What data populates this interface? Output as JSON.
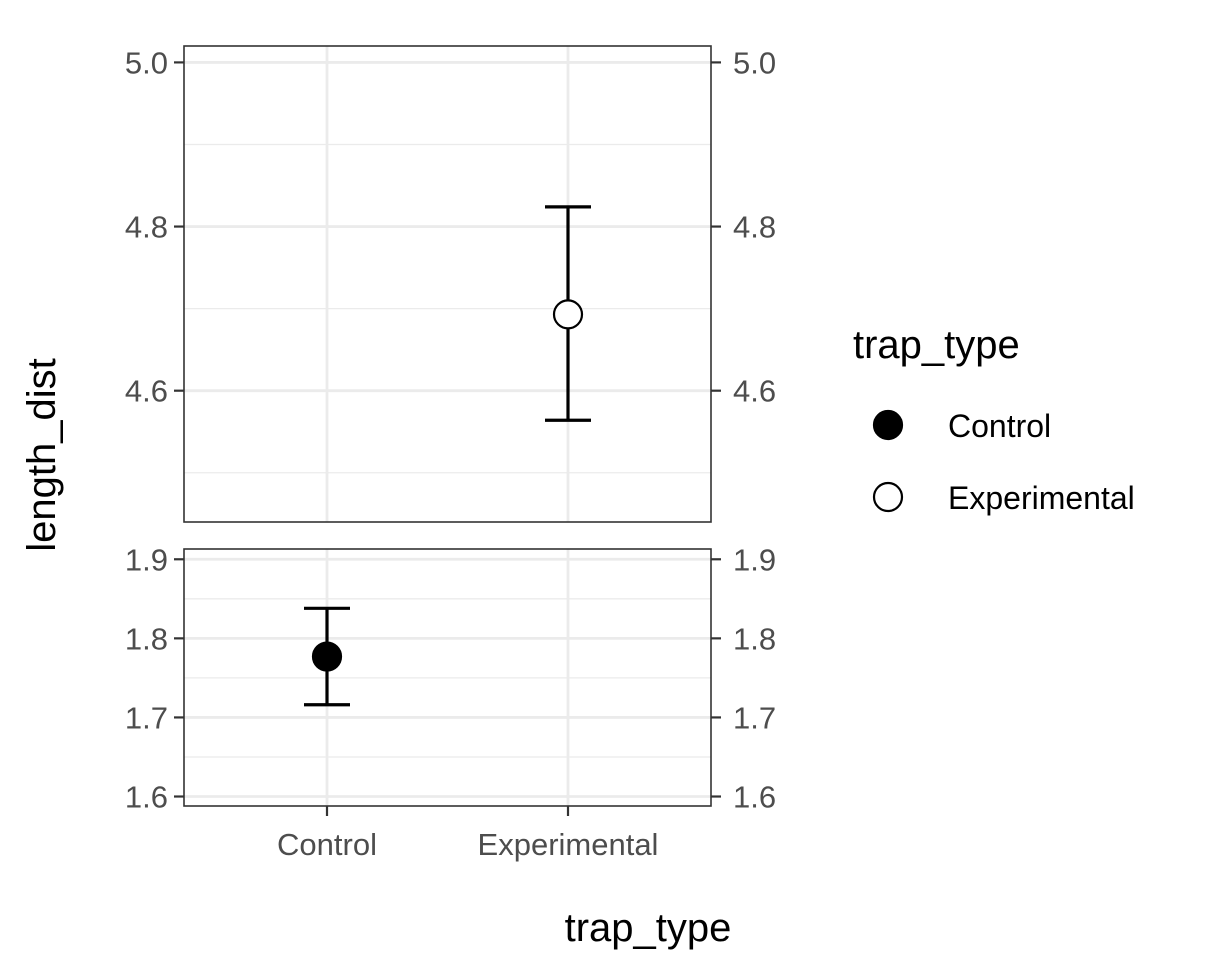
{
  "chart_data": {
    "type": "scatter",
    "subtype": "point with error bars, broken y-axis",
    "xlabel": "trap_type",
    "ylabel": "length_dist",
    "categories": [
      "Control",
      "Experimental"
    ],
    "y_axis_right_duplicate": true,
    "grid": true,
    "segments": [
      {
        "ylim": [
          4.44,
          5.02
        ],
        "major_ticks": [
          4.6,
          4.8,
          5.0
        ],
        "tick_labels": [
          "4.6",
          "4.8",
          "5.0"
        ],
        "minor_gridlines": [
          4.5,
          4.7,
          4.9
        ]
      },
      {
        "ylim": [
          1.588,
          1.913
        ],
        "major_ticks": [
          1.6,
          1.7,
          1.8,
          1.9
        ],
        "tick_labels": [
          "1.6",
          "1.7",
          "1.8",
          "1.9"
        ],
        "minor_gridlines": [
          1.65,
          1.75,
          1.85
        ]
      }
    ],
    "series": [
      {
        "name": "Control",
        "x": "Control",
        "y": 1.777,
        "ymin": 1.716,
        "ymax": 1.838,
        "segment": 1,
        "fill": "#000000"
      },
      {
        "name": "Experimental",
        "x": "Experimental",
        "y": 4.693,
        "ymin": 4.564,
        "ymax": 4.824,
        "segment": 0,
        "fill": "#ffffff"
      }
    ],
    "legend": {
      "title": "trap_type",
      "position": "right",
      "entries": [
        {
          "label": "Control",
          "fill": "#000000"
        },
        {
          "label": "Experimental",
          "fill": "#ffffff"
        }
      ]
    }
  }
}
